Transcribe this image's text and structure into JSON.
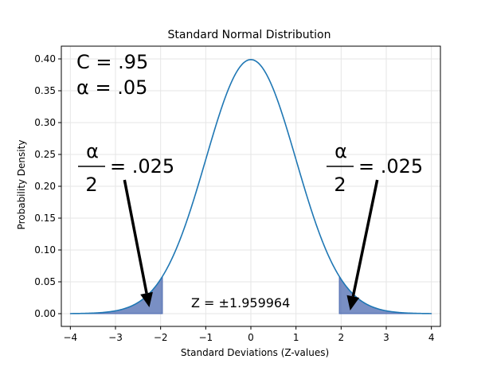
{
  "chart_data": {
    "type": "area",
    "title": "Standard Normal Distribution",
    "xlabel": "Standard Deviations (Z-values)",
    "ylabel": "Probability Density",
    "xlim": [
      -4.2,
      4.2
    ],
    "ylim": [
      -0.02,
      0.42
    ],
    "x_ticks": [
      "−4",
      "−3",
      "−2",
      "−1",
      "0",
      "1",
      "2",
      "3",
      "4"
    ],
    "y_ticks": [
      "0.00",
      "0.05",
      "0.10",
      "0.15",
      "0.20",
      "0.25",
      "0.30",
      "0.35",
      "0.40"
    ],
    "grid": true,
    "series": [
      {
        "type": "line",
        "distribution": "standard normal",
        "mean": 0,
        "sd": 1,
        "x_range": [
          -4,
          4
        ],
        "color": "#1f77b4"
      }
    ],
    "shaded_regions": [
      {
        "from": -4,
        "to": -1.959964,
        "color": "#4c6ab0"
      },
      {
        "from": 1.959964,
        "to": 4,
        "color": "#4c6ab0"
      }
    ],
    "annotations": {
      "confidence": "C = .95",
      "alpha": "α = .05",
      "left_fraction_numerator": "α",
      "left_fraction_denominator": "2",
      "left_fraction_value": "= .025",
      "right_fraction_numerator": "α",
      "right_fraction_denominator": "2",
      "right_fraction_value": "= .025",
      "z_value": "Z = ±1.959964"
    },
    "arrows": [
      {
        "from": [
          -2.8,
          0.21
        ],
        "to": [
          -2.25,
          0.01
        ]
      },
      {
        "from": [
          2.8,
          0.21
        ],
        "to": [
          2.2,
          0.005
        ]
      }
    ]
  }
}
